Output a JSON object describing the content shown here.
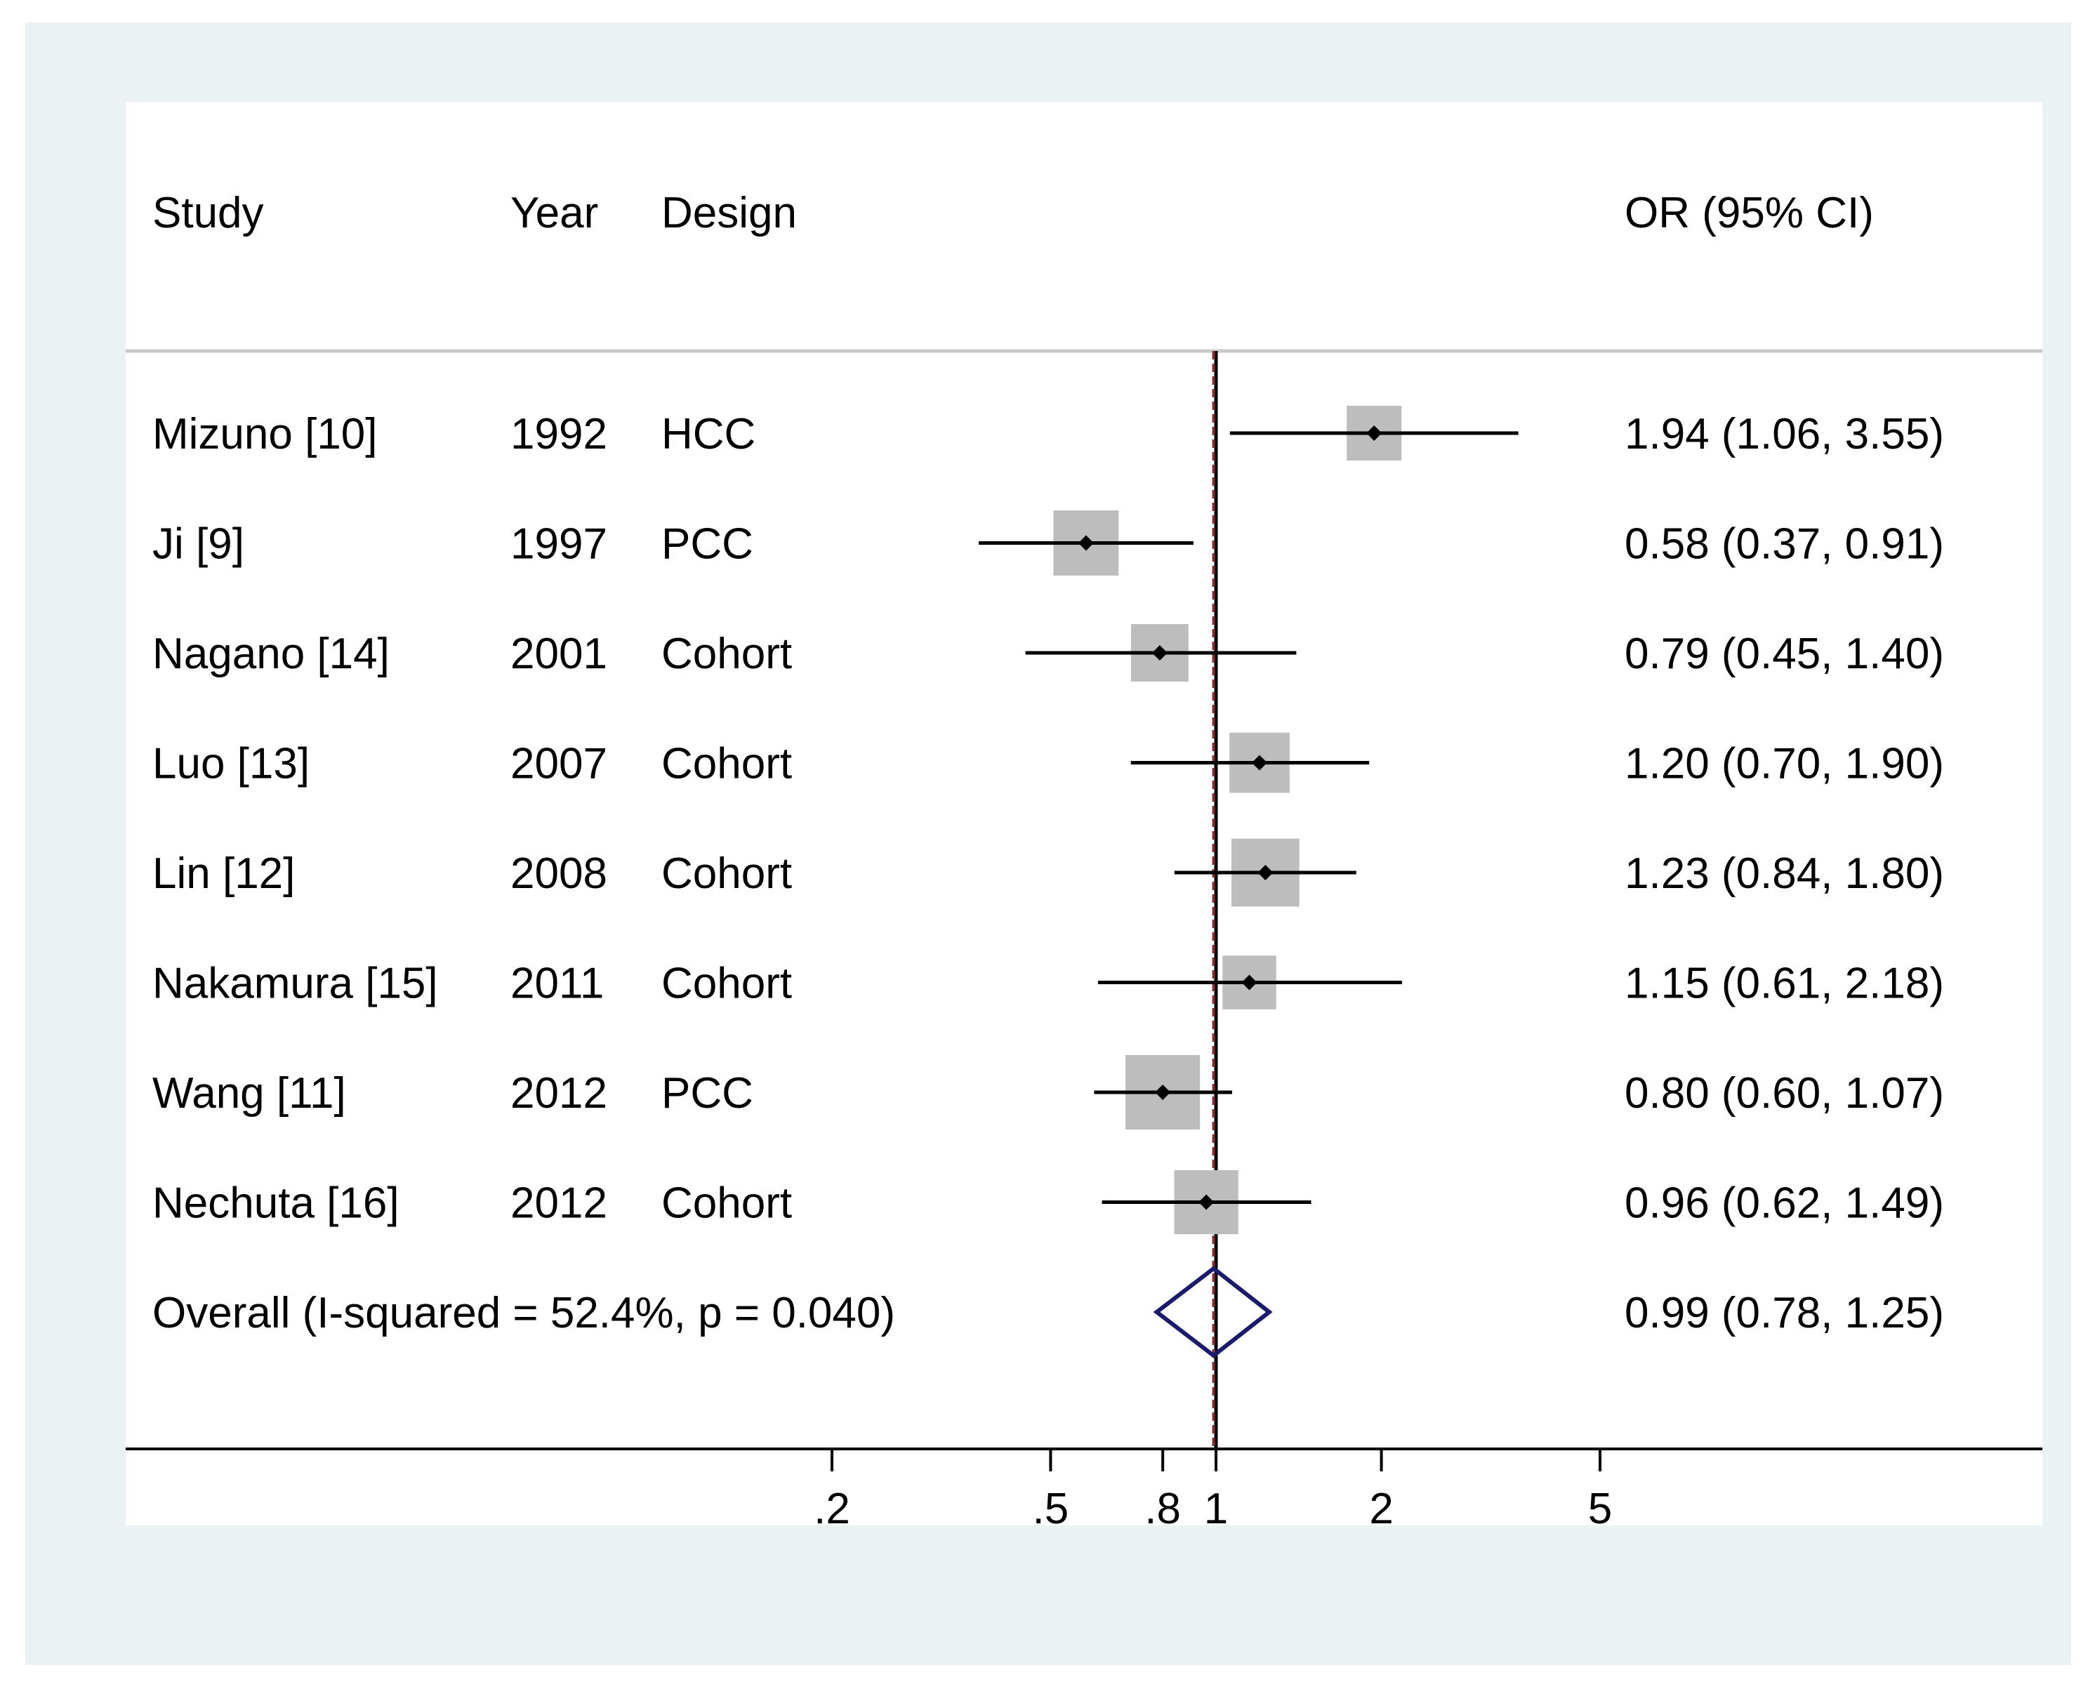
{
  "chart_data": {
    "type": "forest",
    "columns": {
      "study": "Study",
      "year": "Year",
      "design": "Design",
      "estimate": "OR (95% CI)"
    },
    "rows": [
      {
        "study": "Mizuno [10]",
        "year": "1992",
        "design": "HCC",
        "or": 1.94,
        "lo": 1.06,
        "hi": 3.55,
        "text": "1.94 (1.06, 3.55)",
        "weight": 1.0
      },
      {
        "study": "Ji [9]",
        "year": "1997",
        "design": "PCC",
        "or": 0.58,
        "lo": 0.37,
        "hi": 0.91,
        "text": "0.58 (0.37, 0.91)",
        "weight": 1.19
      },
      {
        "study": "Nagano [14]",
        "year": "2001",
        "design": "Cohort",
        "or": 0.79,
        "lo": 0.45,
        "hi": 1.4,
        "text": "0.79 (0.45, 1.40)",
        "weight": 1.05
      },
      {
        "study": "Luo [13]",
        "year": "2007",
        "design": "Cohort",
        "or": 1.2,
        "lo": 0.7,
        "hi": 1.9,
        "text": "1.20 (0.70, 1.90)",
        "weight": 1.1
      },
      {
        "study": "Lin [12]",
        "year": "2008",
        "design": "Cohort",
        "or": 1.23,
        "lo": 0.84,
        "hi": 1.8,
        "text": "1.23 (0.84, 1.80)",
        "weight": 1.24
      },
      {
        "study": "Nakamura [15]",
        "year": "2011",
        "design": "Cohort",
        "or": 1.15,
        "lo": 0.61,
        "hi": 2.18,
        "text": "1.15 (0.61, 2.18)",
        "weight": 0.98
      },
      {
        "study": "Wang [11]",
        "year": "2012",
        "design": "PCC",
        "or": 0.8,
        "lo": 0.6,
        "hi": 1.07,
        "text": "0.80 (0.60, 1.07)",
        "weight": 1.36
      },
      {
        "study": "Nechuta [16]",
        "year": "2012",
        "design": "Cohort",
        "or": 0.96,
        "lo": 0.62,
        "hi": 1.49,
        "text": "0.96 (0.62, 1.49)",
        "weight": 1.17
      }
    ],
    "overall": {
      "label": "Overall  (I-squared = 52.4%, p = 0.040)",
      "or": 0.99,
      "lo": 0.78,
      "hi": 1.25,
      "text": "0.99 (0.78, 1.25)"
    },
    "x_axis": {
      "scale": "log",
      "ticks": [
        0.2,
        0.5,
        0.8,
        1,
        2,
        5
      ],
      "tick_labels": [
        ".2",
        ".5",
        ".8",
        "1",
        "2",
        "5"
      ]
    },
    "null_line": 1,
    "colors": {
      "box": "#bdbdbd",
      "ci_line": "#000000",
      "point": "#000000",
      "diamond": "#1a1a6e",
      "overall_line": "#8b2a2a",
      "frame": "#eaf2f3"
    }
  }
}
